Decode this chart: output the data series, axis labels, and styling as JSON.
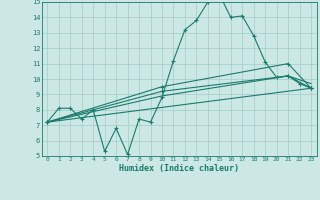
{
  "xlabel": "Humidex (Indice chaleur)",
  "background_color": "#cce8e4",
  "grid_color": "#aacfca",
  "line_color": "#1a7a6e",
  "xlim": [
    -0.5,
    23.5
  ],
  "ylim": [
    5,
    15
  ],
  "xticks": [
    0,
    1,
    2,
    3,
    4,
    5,
    6,
    7,
    8,
    9,
    10,
    11,
    12,
    13,
    14,
    15,
    16,
    17,
    18,
    19,
    20,
    21,
    22,
    23
  ],
  "yticks": [
    5,
    6,
    7,
    8,
    9,
    10,
    11,
    12,
    13,
    14,
    15
  ],
  "line1_x": [
    0,
    1,
    2,
    3,
    4,
    5,
    6,
    7,
    8,
    9,
    10,
    11,
    12,
    13,
    14,
    15,
    16,
    17,
    18,
    19,
    20,
    21,
    22,
    23
  ],
  "line1_y": [
    7.2,
    8.1,
    8.1,
    7.4,
    8.0,
    5.3,
    6.8,
    5.1,
    7.4,
    7.2,
    8.8,
    11.2,
    13.2,
    13.8,
    15.0,
    15.5,
    14.0,
    14.1,
    12.8,
    11.1,
    10.1,
    10.2,
    9.7,
    9.4
  ],
  "line2_x": [
    0,
    23
  ],
  "line2_y": [
    7.2,
    9.4
  ],
  "line3_x": [
    0,
    10,
    21,
    23
  ],
  "line3_y": [
    7.2,
    8.9,
    10.2,
    9.7
  ],
  "line4_x": [
    0,
    10,
    21,
    23
  ],
  "line4_y": [
    7.2,
    9.2,
    10.2,
    9.4
  ],
  "line5_x": [
    0,
    10,
    21,
    23
  ],
  "line5_y": [
    7.2,
    9.5,
    11.0,
    9.4
  ]
}
